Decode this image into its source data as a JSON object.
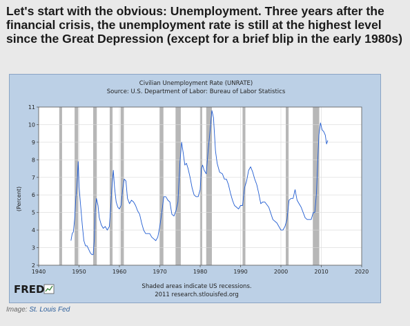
{
  "headline": "Let's start with the obvious: Unemployment. Three years after the financial crisis, the unemployment rate is still at the highest level since the Great Depression (except for a brief blip in the early 1980s)",
  "credit": {
    "prefix": "Image: ",
    "source": "St. Louis Fed"
  },
  "fred_logo": "FRED",
  "chart_data": {
    "type": "line",
    "title": "Civilian Unemployment Rate (UNRATE)",
    "subtitle": "Source: U.S. Department of Labor: Bureau of Labor Statistics",
    "ylabel": "(Percent)",
    "xlabel": "",
    "xlim": [
      1940,
      2020
    ],
    "ylim": [
      2,
      11
    ],
    "xticks": [
      1940,
      1950,
      1960,
      1970,
      1980,
      1990,
      2000,
      2010,
      2020
    ],
    "yticks": [
      2,
      3,
      4,
      5,
      6,
      7,
      8,
      9,
      10,
      11
    ],
    "grid": true,
    "line_color": "#1f5bd1",
    "recession_color": "#b7b7b7",
    "footnote": "Shaded areas indicate US recessions.",
    "footnote2": "2011 research.stlouisfed.org",
    "recessions": [
      [
        1945.1,
        1945.8
      ],
      [
        1948.9,
        1949.8
      ],
      [
        1953.5,
        1954.4
      ],
      [
        1957.6,
        1958.3
      ],
      [
        1960.3,
        1961.1
      ],
      [
        1969.9,
        1970.9
      ],
      [
        1973.9,
        1975.2
      ],
      [
        1980.0,
        1980.5
      ],
      [
        1981.5,
        1982.9
      ],
      [
        1990.5,
        1991.2
      ],
      [
        2001.2,
        2001.9
      ],
      [
        2007.9,
        2009.5
      ]
    ],
    "series": [
      {
        "x": [
          1948.0,
          1948.3,
          1948.6,
          1948.9,
          1949.2,
          1949.5,
          1949.8,
          1950.0,
          1950.4,
          1950.8,
          1951.2,
          1951.6,
          1952.0,
          1952.4,
          1952.8,
          1953.2,
          1953.5,
          1953.8,
          1954.0,
          1954.3,
          1954.7,
          1955.0,
          1955.5,
          1956.0,
          1956.5,
          1957.0,
          1957.5,
          1957.8,
          1958.1,
          1958.5,
          1958.8,
          1959.2,
          1959.6,
          1960.0,
          1960.4,
          1960.8,
          1961.2,
          1961.6,
          1962.0,
          1962.5,
          1963.0,
          1963.5,
          1964.0,
          1964.5,
          1965.0,
          1965.5,
          1966.0,
          1966.5,
          1967.0,
          1967.5,
          1968.0,
          1968.5,
          1969.0,
          1969.5,
          1970.0,
          1970.5,
          1971.0,
          1971.5,
          1972.0,
          1972.5,
          1973.0,
          1973.5,
          1974.0,
          1974.5,
          1975.0,
          1975.4,
          1975.8,
          1976.2,
          1976.6,
          1977.0,
          1977.5,
          1978.0,
          1978.5,
          1979.0,
          1979.5,
          1980.0,
          1980.3,
          1980.6,
          1981.0,
          1981.5,
          1982.0,
          1982.4,
          1982.9,
          1983.3,
          1983.8,
          1984.2,
          1984.8,
          1985.5,
          1986.0,
          1986.5,
          1987.0,
          1987.5,
          1988.0,
          1988.5,
          1989.0,
          1989.5,
          1990.0,
          1990.5,
          1991.0,
          1991.5,
          1992.0,
          1992.5,
          1993.0,
          1993.5,
          1994.0,
          1994.5,
          1995.0,
          1995.5,
          1996.0,
          1997.0,
          1998.0,
          1999.0,
          2000.0,
          2000.5,
          2001.0,
          2001.5,
          2002.0,
          2002.5,
          2003.0,
          2003.5,
          2004.0,
          2004.5,
          2005.0,
          2005.5,
          2006.0,
          2006.5,
          2007.0,
          2007.5,
          2008.0,
          2008.4,
          2008.8,
          2009.1,
          2009.4,
          2009.8,
          2010.2,
          2010.6,
          2011.0,
          2011.3,
          2011.6
        ],
        "y": [
          3.4,
          3.8,
          3.9,
          4.6,
          5.8,
          6.6,
          7.9,
          6.5,
          5.4,
          4.3,
          3.4,
          3.1,
          3.1,
          2.9,
          2.7,
          2.6,
          2.6,
          3.5,
          5.1,
          5.8,
          5.4,
          4.7,
          4.3,
          4.1,
          4.2,
          4.0,
          4.2,
          5.1,
          6.3,
          7.4,
          6.4,
          5.6,
          5.3,
          5.2,
          5.4,
          6.3,
          6.9,
          6.8,
          5.8,
          5.5,
          5.7,
          5.6,
          5.4,
          5.1,
          4.9,
          4.4,
          4.0,
          3.8,
          3.8,
          3.8,
          3.6,
          3.5,
          3.4,
          3.6,
          4.2,
          5.0,
          5.9,
          5.9,
          5.7,
          5.6,
          4.9,
          4.8,
          5.1,
          5.6,
          7.9,
          9.0,
          8.4,
          7.7,
          7.8,
          7.5,
          7.0,
          6.4,
          6.0,
          5.9,
          5.9,
          6.3,
          7.5,
          7.7,
          7.4,
          7.2,
          8.6,
          9.5,
          10.8,
          10.4,
          8.5,
          7.8,
          7.3,
          7.2,
          6.9,
          6.9,
          6.6,
          6.1,
          5.7,
          5.4,
          5.3,
          5.2,
          5.4,
          5.4,
          6.4,
          6.8,
          7.4,
          7.6,
          7.3,
          6.9,
          6.6,
          6.1,
          5.5,
          5.6,
          5.6,
          5.3,
          4.6,
          4.4,
          4.0,
          4.0,
          4.2,
          4.6,
          5.7,
          5.8,
          5.8,
          6.3,
          5.7,
          5.5,
          5.3,
          5.0,
          4.7,
          4.6,
          4.6,
          4.6,
          5.0,
          5.0,
          6.1,
          7.8,
          9.4,
          10.1,
          9.7,
          9.6,
          9.4,
          8.9,
          9.1
        ]
      }
    ]
  }
}
